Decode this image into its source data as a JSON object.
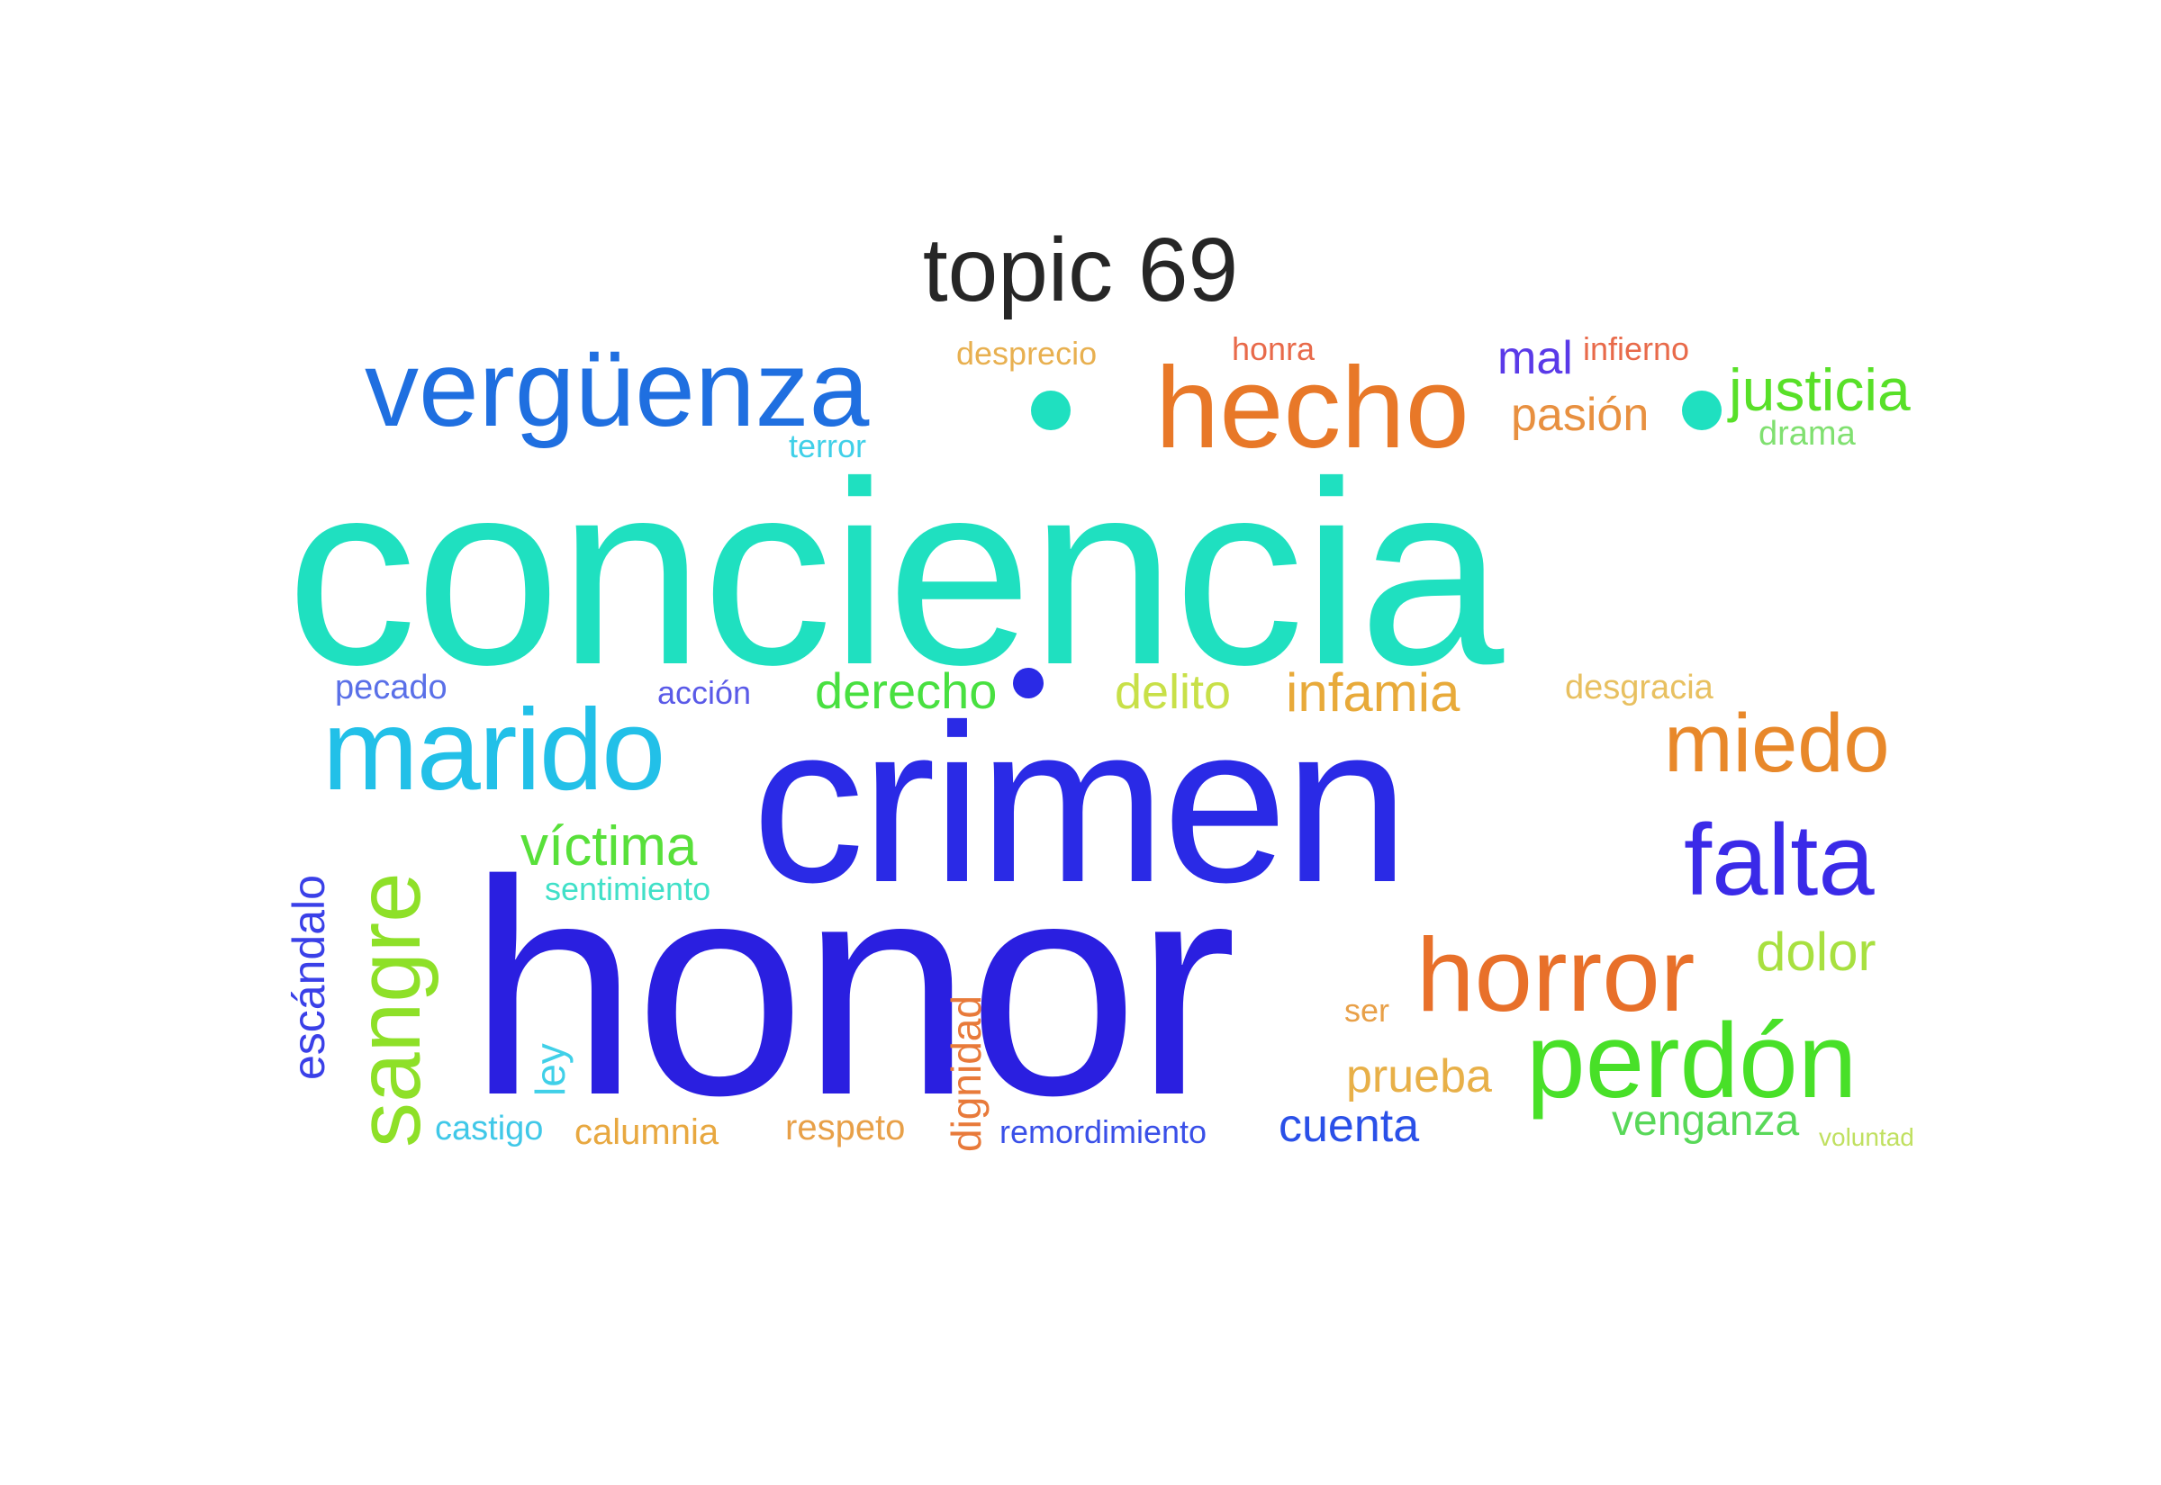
{
  "title": "topic 69",
  "words": [
    {
      "text": "conciencia",
      "color": "#1fe0c0"
    },
    {
      "text": "honor",
      "color": "#2a1fe0"
    },
    {
      "text": "crimen",
      "color": "#2a2ae6"
    },
    {
      "text": "vergüenza",
      "color": "#1f6fe0"
    },
    {
      "text": "hecho",
      "color": "#e87828"
    },
    {
      "text": "marido",
      "color": "#22c0e8"
    },
    {
      "text": "perdón",
      "color": "#48e028"
    },
    {
      "text": "horror",
      "color": "#e8702a"
    },
    {
      "text": "miedo",
      "color": "#e8882a"
    },
    {
      "text": "falta",
      "color": "#3a2ae8"
    },
    {
      "text": "sangre",
      "color": "#8ee028"
    },
    {
      "text": "justicia",
      "color": "#58e028"
    },
    {
      "text": "víctima",
      "color": "#58e03a"
    },
    {
      "text": "infamia",
      "color": "#e8aa3a"
    },
    {
      "text": "derecho",
      "color": "#48e040"
    },
    {
      "text": "dolor",
      "color": "#a8e040"
    },
    {
      "text": "prueba",
      "color": "#e8b048"
    },
    {
      "text": "pasión",
      "color": "#e89040"
    },
    {
      "text": "delito",
      "color": "#c8e048"
    },
    {
      "text": "escándalo",
      "color": "#3a40e8"
    },
    {
      "text": "cuenta",
      "color": "#2a50e8"
    },
    {
      "text": "venganza",
      "color": "#58d858"
    },
    {
      "text": "mal",
      "color": "#5a3ae8"
    },
    {
      "text": "pecado",
      "color": "#5a70e8"
    },
    {
      "text": "acción",
      "color": "#5a5ae8"
    },
    {
      "text": "desgracia",
      "color": "#e8c060"
    },
    {
      "text": "ley",
      "color": "#40d0e8"
    },
    {
      "text": "dignidad",
      "color": "#e87a3a"
    },
    {
      "text": "calumnia",
      "color": "#e8a840"
    },
    {
      "text": "respeto",
      "color": "#e8a048"
    },
    {
      "text": "castigo",
      "color": "#40c8e8"
    },
    {
      "text": "remordimiento",
      "color": "#3a50e8"
    },
    {
      "text": "desprecio",
      "color": "#e8b050"
    },
    {
      "text": "honra",
      "color": "#e86a4a"
    },
    {
      "text": "infierno",
      "color": "#e86a4a"
    },
    {
      "text": "drama",
      "color": "#80e070"
    },
    {
      "text": "terror",
      "color": "#40d0e8"
    },
    {
      "text": "sentimiento",
      "color": "#40e0c8"
    },
    {
      "text": "ser",
      "color": "#e8a048"
    },
    {
      "text": "voluntad",
      "color": "#c0e060"
    }
  ],
  "dots": [
    {
      "name": "dot-1",
      "color": "#1fe0c0"
    },
    {
      "name": "dot-2",
      "color": "#1fe0c0"
    },
    {
      "name": "dot-3",
      "color": "#2a2ae6"
    }
  ]
}
